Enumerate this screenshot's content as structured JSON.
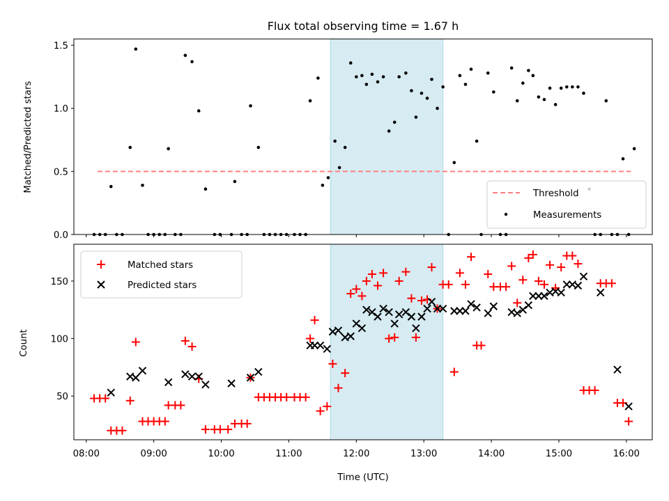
{
  "chart_data": [
    {
      "type": "scatter",
      "title": "Flux total observing time = 1.67 h",
      "xlabel": "",
      "ylabel": "Matched/Predicted stars",
      "xlim": [
        "07:49",
        "16:23"
      ],
      "ylim": [
        0,
        1.55
      ],
      "yticks": [
        0.0,
        0.5,
        1.0,
        1.5
      ],
      "yticklabels": [
        "0.0",
        "0.5",
        "1.0",
        "1.5"
      ],
      "highlight_span": {
        "start": "11:37",
        "end": "13:17",
        "color": "#add8e6"
      },
      "threshold": {
        "name": "Threshold",
        "value": 0.5,
        "from": "08:10",
        "to": "16:04",
        "color": "#ff7f7f"
      },
      "legend": {
        "location": "lower right",
        "entries": [
          "Threshold",
          "Measurements"
        ]
      },
      "series": [
        {
          "name": "Measurements",
          "color": "#000000",
          "points": [
            [
              "08:07",
              0
            ],
            [
              "08:12",
              0
            ],
            [
              "08:17",
              0
            ],
            [
              "08:22",
              0.38
            ],
            [
              "08:27",
              0
            ],
            [
              "08:32",
              0
            ],
            [
              "08:39",
              0.69
            ],
            [
              "08:44",
              1.47
            ],
            [
              "08:50",
              0.39
            ],
            [
              "08:55",
              0
            ],
            [
              "09:00",
              0
            ],
            [
              "09:05",
              0
            ],
            [
              "09:10",
              0
            ],
            [
              "09:13",
              0.68
            ],
            [
              "09:19",
              0
            ],
            [
              "09:24",
              0
            ],
            [
              "09:28",
              1.42
            ],
            [
              "09:34",
              1.37
            ],
            [
              "09:40",
              0.98
            ],
            [
              "09:46",
              0.36
            ],
            [
              "09:54",
              0
            ],
            [
              "09:59",
              0
            ],
            [
              "10:09",
              0
            ],
            [
              "10:12",
              0.42
            ],
            [
              "10:18",
              0
            ],
            [
              "10:23",
              0
            ],
            [
              "10:26",
              1.02
            ],
            [
              "10:33",
              0.69
            ],
            [
              "10:38",
              0
            ],
            [
              "10:43",
              0
            ],
            [
              "10:48",
              0
            ],
            [
              "10:53",
              0
            ],
            [
              "10:58",
              0
            ],
            [
              "11:05",
              0
            ],
            [
              "11:10",
              0
            ],
            [
              "11:15",
              0
            ],
            [
              "11:19",
              1.06
            ],
            [
              "11:26",
              1.24
            ],
            [
              "11:30",
              0.39
            ],
            [
              "11:35",
              0.45
            ],
            [
              "11:41",
              0.74
            ],
            [
              "11:45",
              0.53
            ],
            [
              "11:50",
              0.69
            ],
            [
              "11:55",
              1.36
            ],
            [
              "12:00",
              1.25
            ],
            [
              "12:05",
              1.26
            ],
            [
              "12:09",
              1.19
            ],
            [
              "12:14",
              1.27
            ],
            [
              "12:19",
              1.21
            ],
            [
              "12:24",
              1.25
            ],
            [
              "12:29",
              0.82
            ],
            [
              "12:34",
              0.89
            ],
            [
              "12:38",
              1.25
            ],
            [
              "12:44",
              1.28
            ],
            [
              "12:49",
              1.14
            ],
            [
              "12:53",
              0.93
            ],
            [
              "12:58",
              1.12
            ],
            [
              "13:03",
              1.08
            ],
            [
              "13:07",
              1.23
            ],
            [
              "13:12",
              1.0
            ],
            [
              "13:17",
              1.17
            ],
            [
              "13:22",
              0
            ],
            [
              "13:27",
              0.57
            ],
            [
              "13:32",
              1.26
            ],
            [
              "13:37",
              1.19
            ],
            [
              "13:42",
              1.31
            ],
            [
              "13:47",
              0.74
            ],
            [
              "13:51",
              0
            ],
            [
              "13:57",
              1.28
            ],
            [
              "14:02",
              1.13
            ],
            [
              "14:08",
              0
            ],
            [
              "14:13",
              0
            ],
            [
              "14:18",
              1.32
            ],
            [
              "14:23",
              1.06
            ],
            [
              "14:28",
              1.2
            ],
            [
              "14:33",
              1.3
            ],
            [
              "14:37",
              1.26
            ],
            [
              "14:42",
              1.09
            ],
            [
              "14:47",
              1.07
            ],
            [
              "14:52",
              1.16
            ],
            [
              "14:57",
              1.03
            ],
            [
              "15:02",
              1.16
            ],
            [
              "15:07",
              1.17
            ],
            [
              "15:12",
              1.17
            ],
            [
              "15:17",
              1.17
            ],
            [
              "15:22",
              1.12
            ],
            [
              "15:27",
              0.36
            ],
            [
              "15:32",
              0
            ],
            [
              "15:37",
              0
            ],
            [
              "15:42",
              1.06
            ],
            [
              "15:47",
              0
            ],
            [
              "15:52",
              0
            ],
            [
              "15:57",
              0.6
            ],
            [
              "16:02",
              0
            ],
            [
              "16:07",
              0.68
            ]
          ]
        }
      ]
    },
    {
      "type": "scatter",
      "title": "",
      "xlabel": "Time (UTC)",
      "ylabel": "Count",
      "xlim": [
        "07:49",
        "16:23"
      ],
      "ylim": [
        12,
        182
      ],
      "xticks": [
        "08:00",
        "09:00",
        "10:00",
        "11:00",
        "12:00",
        "13:00",
        "14:00",
        "15:00",
        "16:00"
      ],
      "yticks": [
        50,
        100,
        150
      ],
      "yticklabels": [
        "50",
        "100",
        "150"
      ],
      "highlight_span": {
        "start": "11:37",
        "end": "13:17",
        "color": "#add8e6"
      },
      "legend": {
        "location": "upper left",
        "entries": [
          "Matched stars",
          "Predicted stars"
        ]
      },
      "series": [
        {
          "name": "Matched stars",
          "marker": "+",
          "color": "#ff0000",
          "points": [
            [
              "08:07",
              48
            ],
            [
              "08:12",
              48
            ],
            [
              "08:17",
              48
            ],
            [
              "08:22",
              20
            ],
            [
              "08:27",
              20
            ],
            [
              "08:32",
              20
            ],
            [
              "08:39",
              46
            ],
            [
              "08:44",
              97
            ],
            [
              "08:50",
              28
            ],
            [
              "08:55",
              28
            ],
            [
              "09:00",
              28
            ],
            [
              "09:05",
              28
            ],
            [
              "09:10",
              28
            ],
            [
              "09:13",
              42
            ],
            [
              "09:19",
              42
            ],
            [
              "09:24",
              42
            ],
            [
              "09:28",
              98
            ],
            [
              "09:34",
              93
            ],
            [
              "09:40",
              65
            ],
            [
              "09:46",
              21
            ],
            [
              "09:54",
              21
            ],
            [
              "09:59",
              21
            ],
            [
              "10:06",
              21
            ],
            [
              "10:12",
              26
            ],
            [
              "10:18",
              26
            ],
            [
              "10:23",
              26
            ],
            [
              "10:26",
              66
            ],
            [
              "10:33",
              49
            ],
            [
              "10:38",
              49
            ],
            [
              "10:43",
              49
            ],
            [
              "10:48",
              49
            ],
            [
              "10:53",
              49
            ],
            [
              "10:58",
              49
            ],
            [
              "11:05",
              49
            ],
            [
              "11:10",
              49
            ],
            [
              "11:15",
              49
            ],
            [
              "11:19",
              100
            ],
            [
              "11:23",
              116
            ],
            [
              "11:28",
              37
            ],
            [
              "11:34",
              41
            ],
            [
              "11:39",
              78
            ],
            [
              "11:44",
              57
            ],
            [
              "11:50",
              70
            ],
            [
              "11:55",
              139
            ],
            [
              "12:00",
              143
            ],
            [
              "12:05",
              137
            ],
            [
              "12:09",
              150
            ],
            [
              "12:14",
              156
            ],
            [
              "12:19",
              146
            ],
            [
              "12:24",
              157
            ],
            [
              "12:29",
              100
            ],
            [
              "12:34",
              101
            ],
            [
              "12:38",
              150
            ],
            [
              "12:44",
              158
            ],
            [
              "12:49",
              135
            ],
            [
              "12:53",
              101
            ],
            [
              "12:58",
              133
            ],
            [
              "13:03",
              134
            ],
            [
              "13:07",
              162
            ],
            [
              "13:12",
              126
            ],
            [
              "13:17",
              147
            ],
            [
              "13:22",
              147
            ],
            [
              "13:27",
              71
            ],
            [
              "13:32",
              157
            ],
            [
              "13:37",
              147
            ],
            [
              "13:42",
              171
            ],
            [
              "13:47",
              94
            ],
            [
              "13:51",
              94
            ],
            [
              "13:57",
              156
            ],
            [
              "14:02",
              145
            ],
            [
              "14:08",
              145
            ],
            [
              "14:13",
              145
            ],
            [
              "14:18",
              163
            ],
            [
              "14:23",
              131
            ],
            [
              "14:28",
              151
            ],
            [
              "14:33",
              170
            ],
            [
              "14:37",
              173
            ],
            [
              "14:42",
              150
            ],
            [
              "14:47",
              147
            ],
            [
              "14:52",
              164
            ],
            [
              "14:57",
              144
            ],
            [
              "15:02",
              162
            ],
            [
              "15:07",
              172
            ],
            [
              "15:12",
              172
            ],
            [
              "15:17",
              165
            ],
            [
              "15:22",
              55
            ],
            [
              "15:27",
              55
            ],
            [
              "15:32",
              55
            ],
            [
              "15:37",
              148
            ],
            [
              "15:42",
              148
            ],
            [
              "15:47",
              148
            ],
            [
              "15:52",
              44
            ],
            [
              "15:57",
              44
            ],
            [
              "16:02",
              28
            ]
          ]
        },
        {
          "name": "Predicted stars",
          "marker": "x",
          "color": "#000000",
          "points": [
            [
              "08:22",
              53
            ],
            [
              "08:39",
              67
            ],
            [
              "08:44",
              66
            ],
            [
              "08:50",
              72
            ],
            [
              "09:13",
              62
            ],
            [
              "09:28",
              69
            ],
            [
              "09:34",
              67
            ],
            [
              "09:40",
              67
            ],
            [
              "09:46",
              60
            ],
            [
              "10:09",
              61
            ],
            [
              "10:26",
              66
            ],
            [
              "10:33",
              71
            ],
            [
              "11:19",
              94
            ],
            [
              "11:23",
              94
            ],
            [
              "11:28",
              94
            ],
            [
              "11:34",
              91
            ],
            [
              "11:39",
              106
            ],
            [
              "11:44",
              107
            ],
            [
              "11:50",
              101
            ],
            [
              "11:55",
              102
            ],
            [
              "12:00",
              113
            ],
            [
              "12:05",
              109
            ],
            [
              "12:09",
              125
            ],
            [
              "12:14",
              123
            ],
            [
              "12:19",
              119
            ],
            [
              "12:24",
              126
            ],
            [
              "12:29",
              123
            ],
            [
              "12:34",
              113
            ],
            [
              "12:38",
              121
            ],
            [
              "12:44",
              123
            ],
            [
              "12:49",
              119
            ],
            [
              "12:53",
              109
            ],
            [
              "12:58",
              119
            ],
            [
              "13:03",
              126
            ],
            [
              "13:07",
              132
            ],
            [
              "13:12",
              126
            ],
            [
              "13:17",
              126
            ],
            [
              "13:27",
              124
            ],
            [
              "13:32",
              124
            ],
            [
              "13:37",
              124
            ],
            [
              "13:42",
              130
            ],
            [
              "13:47",
              127
            ],
            [
              "13:57",
              122
            ],
            [
              "14:02",
              128
            ],
            [
              "14:18",
              123
            ],
            [
              "14:23",
              122
            ],
            [
              "14:28",
              125
            ],
            [
              "14:33",
              129
            ],
            [
              "14:37",
              137
            ],
            [
              "14:42",
              137
            ],
            [
              "14:47",
              137
            ],
            [
              "14:52",
              140
            ],
            [
              "14:57",
              141
            ],
            [
              "15:02",
              140
            ],
            [
              "15:07",
              147
            ],
            [
              "15:12",
              147
            ],
            [
              "15:17",
              146
            ],
            [
              "15:22",
              154
            ],
            [
              "15:37",
              140
            ],
            [
              "15:52",
              73
            ],
            [
              "16:02",
              41
            ]
          ]
        }
      ]
    }
  ]
}
